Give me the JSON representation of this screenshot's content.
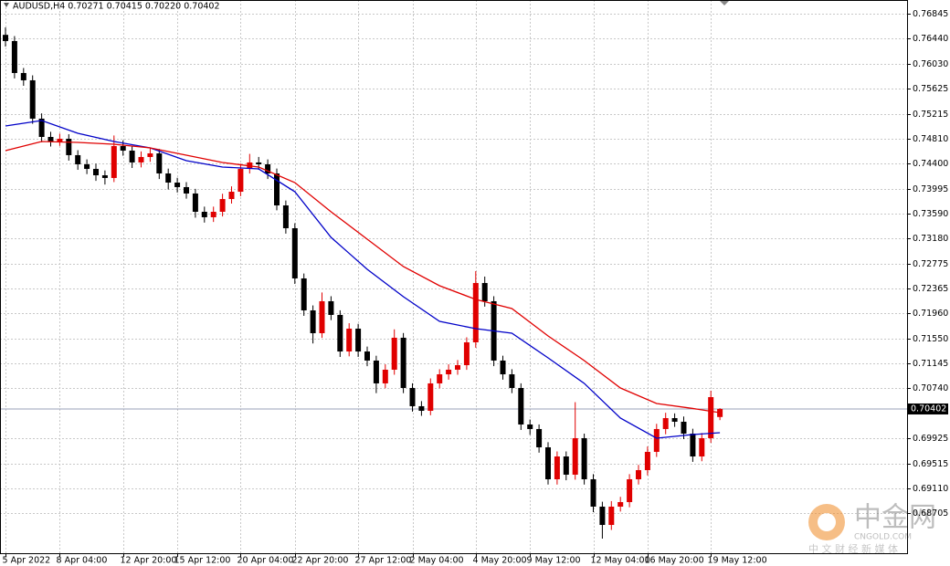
{
  "chart_data": {
    "type": "candlestick",
    "title": "AUDUSD,H4  0.70271 0.70415 0.70220 0.70402",
    "current_price": 0.70402,
    "bull_color": "#e00000",
    "bear_color": "#000000",
    "grid": true,
    "ylim": [
      0.68036,
      0.77068
    ],
    "yticks": [
      0.76845,
      {
        "value": 0.7644,
        "label": "0.76440"
      },
      {
        "value": 0.7603,
        "label": "0.76030"
      },
      0.75625,
      0.75215,
      {
        "value": 0.7481,
        "label": "0.74810"
      },
      {
        "value": 0.744,
        "label": "0.74400"
      },
      0.73995,
      {
        "value": 0.7359,
        "label": "0.73590"
      },
      {
        "value": 0.7318,
        "label": "0.73180"
      },
      0.72775,
      0.72365,
      {
        "value": 0.7196,
        "label": "0.71960"
      },
      {
        "value": 0.7155,
        "label": "0.71550"
      },
      0.71145,
      {
        "value": 0.7074,
        "label": "0.70740"
      },
      0.69925,
      0.69515,
      {
        "value": 0.6911,
        "label": "0.69110"
      },
      0.68705
    ],
    "categories": [
      "5 Apr 2022",
      null,
      null,
      null,
      null,
      null,
      "8 Apr 04:00",
      null,
      null,
      null,
      null,
      null,
      null,
      "12 Apr 20:00",
      null,
      null,
      null,
      null,
      null,
      "15 Apr 12:00",
      null,
      null,
      null,
      null,
      null,
      null,
      "20 Apr 04:00",
      null,
      null,
      null,
      null,
      null,
      "22 Apr 20:00",
      null,
      null,
      null,
      null,
      null,
      null,
      "27 Apr 12:00",
      null,
      null,
      null,
      null,
      null,
      "2 May 04:00",
      null,
      null,
      null,
      null,
      null,
      null,
      "4 May 20:00",
      null,
      null,
      null,
      null,
      null,
      "9 May 12:00",
      null,
      null,
      null,
      null,
      null,
      null,
      "12 May 04:00",
      null,
      null,
      null,
      null,
      null,
      "16 May 20:00",
      null,
      null,
      null,
      null,
      null,
      null,
      "19 May 12:00",
      null
    ],
    "open": [
      0.765,
      0.76399,
      0.75878,
      0.75759,
      0.75134,
      0.74836,
      0.74762,
      0.74806,
      0.74539,
      0.7439,
      0.74315,
      0.74211,
      0.74167,
      0.74687,
      0.74613,
      0.7442,
      0.74509,
      0.74568,
      0.74241,
      0.74092,
      0.74018,
      0.73914,
      0.73616,
      0.73527,
      0.73616,
      0.73824,
      0.73943,
      0.74315,
      0.7442,
      0.7439,
      0.74241,
      0.7372,
      0.73348,
      0.7253,
      0.72009,
      0.71637,
      0.72158,
      0.71935,
      0.71339,
      0.71711,
      0.71339,
      0.71191,
      0.70819,
      0.71042,
      0.71563,
      0.70744,
      0.70447,
      0.70372,
      0.70819,
      0.70967,
      0.71042,
      0.71116,
      0.71488,
      0.72455,
      0.72158,
      0.71191,
      0.70967,
      0.70744,
      0.70149,
      0.70075,
      0.69777,
      0.69256,
      0.69628,
      0.69331,
      0.69926,
      0.69256,
      0.6881,
      0.68512,
      0.6881,
      0.68884,
      0.69256,
      0.69405,
      0.69703,
      0.70075,
      0.70253,
      0.70194,
      0.7,
      0.69628,
      0.69926,
      0.70271
    ],
    "high": [
      0.76622,
      0.7648,
      0.7596,
      0.7584,
      0.7522,
      0.7492,
      0.7489,
      0.7488,
      0.7462,
      0.7447,
      0.744,
      0.7429,
      0.7486,
      0.7478,
      0.7469,
      0.746,
      0.7465,
      0.7464,
      0.7432,
      0.7417,
      0.741,
      0.7399,
      0.737,
      0.737,
      0.7391,
      0.7403,
      0.744,
      0.7456,
      0.7451,
      0.7447,
      0.7432,
      0.738,
      0.7343,
      0.7261,
      0.7209,
      0.723,
      0.7224,
      0.7201,
      0.718,
      0.7179,
      0.7142,
      0.7127,
      0.7113,
      0.717,
      0.7164,
      0.7082,
      0.7053,
      0.709,
      0.7105,
      0.7113,
      0.712,
      0.7157,
      0.72649,
      0.7256,
      0.7224,
      0.7127,
      0.7105,
      0.7082,
      0.7023,
      0.7015,
      0.6986,
      0.6971,
      0.6971,
      0.70513,
      0.7,
      0.6934,
      0.6889,
      0.689,
      0.6897,
      0.6934,
      0.6949,
      0.6979,
      0.7016,
      0.7034,
      0.7033,
      0.7028,
      0.7008,
      0.7001,
      0.707,
      0.70415
    ],
    "low": [
      0.7631,
      0.7579,
      0.7567,
      0.7505,
      0.7475,
      0.7468,
      0.7469,
      0.7445,
      0.743,
      0.7423,
      0.7412,
      0.7406,
      0.741,
      0.7453,
      0.7433,
      0.7434,
      0.7443,
      0.7415,
      0.7398,
      0.7393,
      0.7383,
      0.7352,
      0.7344,
      0.7345,
      0.7354,
      0.7375,
      0.7387,
      0.7424,
      0.743,
      0.7415,
      0.7364,
      0.7326,
      0.7244,
      0.7192,
      0.7147,
      0.7156,
      0.7185,
      0.7125,
      0.7126,
      0.7125,
      0.711,
      0.7066,
      0.7074,
      0.7096,
      0.7066,
      0.7036,
      0.7029,
      0.703,
      0.7074,
      0.7088,
      0.7096,
      0.7104,
      0.714,
      0.7207,
      0.711,
      0.7088,
      0.7066,
      0.7006,
      0.6998,
      0.6969,
      0.6917,
      0.6917,
      0.6924,
      0.6925,
      0.6917,
      0.6872,
      0.68289,
      0.6843,
      0.6873,
      0.688,
      0.6917,
      0.6932,
      0.6962,
      0.6999,
      0.7011,
      0.6991,
      0.6954,
      0.6955,
      0.6985,
      0.7022
    ],
    "close": [
      0.76399,
      0.75878,
      0.75759,
      0.75134,
      0.74836,
      0.74762,
      0.74806,
      0.74539,
      0.7439,
      0.74315,
      0.74211,
      0.74167,
      0.74687,
      0.74613,
      0.7442,
      0.74509,
      0.74568,
      0.74241,
      0.74092,
      0.74018,
      0.73914,
      0.73616,
      0.73527,
      0.73616,
      0.73824,
      0.73943,
      0.74315,
      0.7442,
      0.7439,
      0.74241,
      0.7372,
      0.73348,
      0.7253,
      0.72009,
      0.71637,
      0.72158,
      0.71935,
      0.71339,
      0.71711,
      0.71339,
      0.71191,
      0.70819,
      0.71042,
      0.71563,
      0.70744,
      0.70447,
      0.70372,
      0.70819,
      0.70967,
      0.71042,
      0.71116,
      0.71488,
      0.72455,
      0.72158,
      0.71191,
      0.70967,
      0.70744,
      0.70149,
      0.70075,
      0.69777,
      0.69256,
      0.69628,
      0.69331,
      0.69926,
      0.69256,
      0.6881,
      0.68512,
      0.6881,
      0.68884,
      0.69256,
      0.69405,
      0.69703,
      0.70075,
      0.70253,
      0.70194,
      0.7,
      0.69628,
      0.69926,
      0.70595,
      0.70402
    ],
    "indicators": [
      {
        "color": "#0000c8",
        "x": [
          0,
          4,
          8,
          12,
          16,
          20,
          24,
          28,
          32,
          36,
          40,
          44,
          48,
          52,
          56,
          60,
          64,
          68,
          72,
          76,
          79
        ],
        "values": [
          0.75015,
          0.75104,
          0.74896,
          0.74762,
          0.74658,
          0.74449,
          0.74345,
          0.74315,
          0.73943,
          0.73199,
          0.72679,
          0.72232,
          0.7183,
          0.71711,
          0.71637,
          0.71235,
          0.70819,
          0.70253,
          0.69926,
          0.69985,
          0.70015
        ]
      },
      {
        "color": "#e00000",
        "x": [
          0,
          4,
          8,
          12,
          16,
          20,
          24,
          28,
          32,
          36,
          40,
          44,
          48,
          52,
          56,
          60,
          64,
          68,
          72,
          76,
          79
        ],
        "values": [
          0.74613,
          0.74762,
          0.74747,
          0.74717,
          0.74658,
          0.74539,
          0.7442,
          0.74345,
          0.74092,
          0.73616,
          0.7317,
          0.72723,
          0.72411,
          0.72188,
          0.72039,
          0.71592,
          0.71191,
          0.70744,
          0.70491,
          0.7041,
          0.70342
        ]
      }
    ],
    "watermark": {
      "name": "中金网",
      "site": "CNGOLD.COM",
      "slogan": "中 文 财 经 新 媒 体"
    }
  }
}
